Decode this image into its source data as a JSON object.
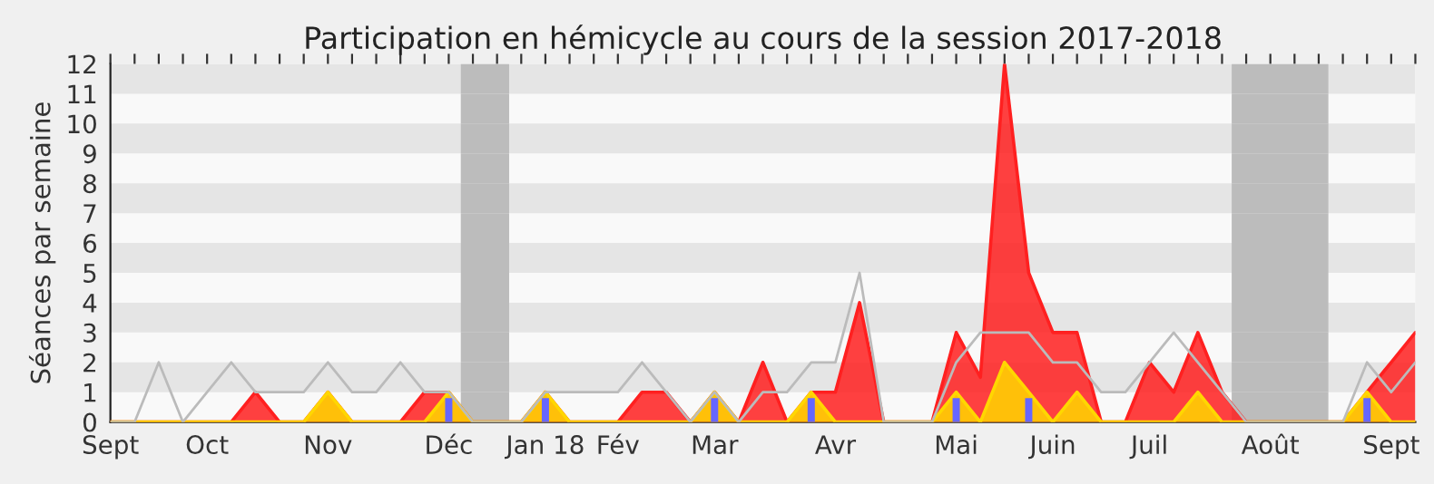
{
  "chart_data": {
    "type": "area",
    "title": "Participation en hémicycle au cours de la session 2017-2018",
    "ylabel": "Séances par semaine",
    "categories": [
      "Sept",
      null,
      null,
      null,
      "Oct",
      null,
      null,
      null,
      null,
      "Nov",
      null,
      null,
      null,
      null,
      "Déc",
      null,
      null,
      null,
      "Jan 18",
      null,
      null,
      "Fév",
      null,
      null,
      null,
      "Mar",
      null,
      null,
      null,
      null,
      "Avr",
      null,
      null,
      null,
      null,
      "Mai",
      null,
      null,
      null,
      "Juin",
      null,
      null,
      null,
      "Juil",
      null,
      null,
      null,
      null,
      "Août",
      null,
      null,
      null,
      null,
      "Sept",
      null
    ],
    "series": [
      {
        "type": "line",
        "color": "#bbbbbb",
        "values": [
          0,
          0,
          2,
          0,
          1,
          2,
          1,
          1,
          1,
          2,
          1,
          1,
          2,
          1,
          1,
          0,
          0,
          0,
          1,
          1,
          1,
          1,
          2,
          1,
          0,
          1,
          0,
          1,
          1,
          2,
          2,
          5,
          0,
          0,
          0,
          2,
          3,
          3,
          3,
          2,
          2,
          1,
          1,
          2,
          3,
          2,
          1,
          0,
          0,
          0,
          0,
          0,
          2,
          1,
          2
        ]
      },
      {
        "color": "#ff2020",
        "values": [
          0,
          0,
          0,
          0,
          0,
          0,
          1,
          0,
          0,
          1,
          0,
          0,
          0,
          1,
          1,
          0,
          0,
          0,
          1,
          0,
          0,
          0,
          1,
          1,
          0,
          1,
          0,
          2,
          0,
          1,
          1,
          4,
          0,
          0,
          0,
          3,
          1.5,
          12,
          5,
          3,
          3,
          0,
          0,
          2,
          1,
          3,
          1,
          0,
          0,
          0,
          0,
          0,
          1,
          2,
          3
        ]
      },
      {
        "color": "#ffd700",
        "values": [
          0,
          0,
          0,
          0,
          0,
          0,
          0,
          0,
          0,
          1,
          0,
          0,
          0,
          0,
          1,
          0,
          0,
          0,
          1,
          0,
          0,
          0,
          0,
          0,
          0,
          1,
          0,
          0,
          0,
          1,
          0,
          0,
          0,
          0,
          0,
          1,
          0,
          2,
          1,
          0,
          1,
          0,
          0,
          0,
          0,
          1,
          0,
          0,
          0,
          0,
          0,
          0,
          1,
          0,
          0
        ]
      },
      {
        "type": "bar",
        "color": "#6666ff",
        "values": [
          null,
          null,
          null,
          null,
          null,
          null,
          null,
          null,
          null,
          null,
          null,
          null,
          null,
          null,
          0.8,
          null,
          null,
          null,
          0.8,
          null,
          null,
          null,
          null,
          null,
          null,
          0.8,
          null,
          null,
          null,
          0.8,
          null,
          null,
          null,
          null,
          null,
          0.8,
          null,
          null,
          0.8,
          null,
          null,
          null,
          null,
          null,
          null,
          null,
          null,
          null,
          null,
          null,
          null,
          null,
          0.8,
          null,
          null
        ]
      }
    ],
    "ylim": [
      0,
      12
    ],
    "yticks": [
      0,
      1,
      2,
      3,
      4,
      5,
      6,
      7,
      8,
      9,
      10,
      11,
      12
    ],
    "legend": false
  }
}
